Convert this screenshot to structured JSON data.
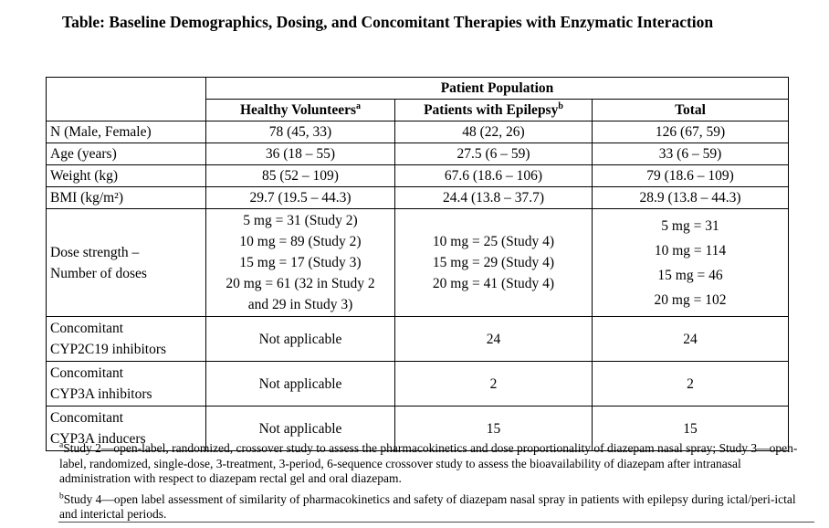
{
  "title": "Table: Baseline Demographics, Dosing, and Concomitant Therapies with Enzymatic Interaction",
  "table": {
    "group_header": "Patient Population",
    "columns": [
      {
        "label": "Healthy Volunteers",
        "sup": "a"
      },
      {
        "label": "Patients with Epilepsy",
        "sup": "b"
      },
      {
        "label": "Total",
        "sup": ""
      }
    ],
    "simple_rows": [
      {
        "label": "N (Male, Female)",
        "values": [
          "78 (45, 33)",
          "48 (22, 26)",
          "126 (67, 59)"
        ]
      },
      {
        "label": "Age (years)",
        "values": [
          "36 (18 – 55)",
          "27.5 (6 – 59)",
          "33 (6 – 59)"
        ]
      },
      {
        "label": "Weight (kg)",
        "values": [
          "85 (52 – 109)",
          "67.6 (18.6 – 106)",
          "79 (18.6 – 109)"
        ]
      },
      {
        "label": "BMI (kg/m²)",
        "values": [
          "29.7 (19.5 – 44.3)",
          "24.4 (13.8 – 37.7)",
          "28.9 (13.8 – 44.3)"
        ]
      }
    ],
    "dose_row": {
      "label_lines": [
        "Dose strength –",
        "Number of doses"
      ],
      "healthy_lines": [
        "5 mg = 31 (Study 2)",
        "10 mg = 89 (Study 2)",
        "15 mg = 17 (Study 3)",
        "20 mg = 61 (32 in Study 2",
        "and 29 in Study 3)"
      ],
      "epilepsy_lines": [
        "10 mg = 25 (Study 4)",
        "15 mg = 29 (Study 4)",
        "20 mg = 41 (Study 4)"
      ],
      "total_lines": [
        "5 mg = 31",
        "10 mg = 114",
        "15 mg = 46",
        "20 mg = 102"
      ]
    },
    "concomitant_rows": [
      {
        "label_lines": [
          "Concomitant",
          "CYP2C19 inhibitors"
        ],
        "values": [
          "Not applicable",
          "24",
          "24"
        ]
      },
      {
        "label_lines": [
          "Concomitant",
          "CYP3A inhibitors"
        ],
        "values": [
          "Not applicable",
          "2",
          "2"
        ]
      },
      {
        "label_lines": [
          "Concomitant",
          "CYP3A inducers"
        ],
        "values": [
          "Not applicable",
          "15",
          "15"
        ]
      }
    ]
  },
  "footnotes": [
    {
      "marker": "a",
      "text": "Study 2—open-label, randomized, crossover study to assess the pharmacokinetics and dose proportionality of diazepam nasal spray; Study 3—open-label, randomized, single-dose, 3-treatment, 3-period, 6-sequence crossover study to assess the bioavailability of diazepam after intranasal administration with respect to diazepam rectal gel and oral diazepam."
    },
    {
      "marker": "b",
      "text": "Study 4—open label assessment of similarity of pharmacokinetics and safety of diazepam nasal spray in patients with epilepsy during ictal/peri-ictal and interictal periods."
    }
  ]
}
